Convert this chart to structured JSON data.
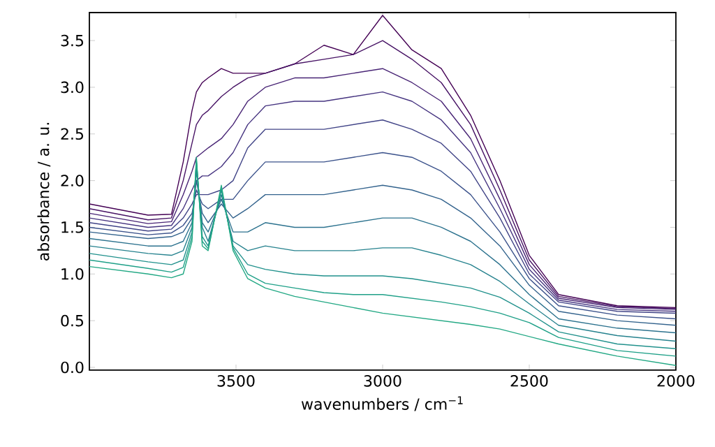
{
  "chart_data": {
    "type": "line",
    "xlabel": "wavenumbers / cm$^{−1}$",
    "ylabel": "absorbance / a. u.",
    "x": [
      4000,
      3800,
      3720,
      3680,
      3650,
      3635,
      3615,
      3595,
      3550,
      3510,
      3460,
      3400,
      3300,
      3200,
      3100,
      3000,
      2900,
      2800,
      2700,
      2600,
      2500,
      2400,
      2200,
      2000
    ],
    "xlim": [
      4000,
      2000
    ],
    "xticks": [
      3500,
      3000,
      2500,
      2000
    ],
    "ylim": [
      -0.03,
      3.8
    ],
    "yticks": [
      {
        "value": 0,
        "label": "0.0"
      },
      0.5,
      {
        "value": 1,
        "label": "1.0"
      },
      1.5,
      {
        "value": 2,
        "label": "2.0"
      },
      2.5,
      {
        "value": 3,
        "label": "3.0"
      },
      3.5
    ],
    "series": [
      {
        "color": "#440154",
        "values": [
          1.75,
          1.63,
          1.64,
          2.2,
          2.75,
          2.95,
          3.05,
          3.1,
          3.2,
          3.15,
          3.15,
          3.15,
          3.25,
          3.45,
          3.35,
          3.77,
          3.4,
          3.2,
          2.7,
          2.0,
          1.2,
          0.78,
          0.66,
          0.64
        ]
      },
      {
        "color": "#471365",
        "values": [
          1.7,
          1.58,
          1.6,
          2.0,
          2.4,
          2.6,
          2.7,
          2.75,
          2.9,
          3.0,
          3.1,
          3.15,
          3.25,
          3.3,
          3.35,
          3.5,
          3.3,
          3.05,
          2.6,
          1.9,
          1.15,
          0.76,
          0.65,
          0.63
        ]
      },
      {
        "color": "#482475",
        "values": [
          1.65,
          1.54,
          1.56,
          1.85,
          2.1,
          2.25,
          2.3,
          2.35,
          2.45,
          2.6,
          2.85,
          3.0,
          3.1,
          3.1,
          3.15,
          3.2,
          3.05,
          2.85,
          2.45,
          1.8,
          1.1,
          0.74,
          0.64,
          0.62
        ]
      },
      {
        "color": "#463480",
        "values": [
          1.6,
          1.5,
          1.52,
          1.7,
          1.9,
          2.0,
          2.05,
          2.05,
          2.15,
          2.3,
          2.6,
          2.8,
          2.85,
          2.85,
          2.9,
          2.95,
          2.85,
          2.65,
          2.3,
          1.7,
          1.05,
          0.72,
          0.62,
          0.6
        ]
      },
      {
        "color": "#414487",
        "values": [
          1.55,
          1.46,
          1.48,
          1.6,
          1.75,
          1.85,
          1.85,
          1.85,
          1.9,
          2.0,
          2.35,
          2.55,
          2.55,
          2.55,
          2.6,
          2.65,
          2.55,
          2.4,
          2.1,
          1.6,
          1.0,
          0.7,
          0.6,
          0.58
        ]
      },
      {
        "color": "#3b528b",
        "values": [
          1.5,
          1.42,
          1.44,
          1.52,
          1.65,
          1.9,
          1.75,
          1.7,
          1.8,
          1.8,
          2.0,
          2.2,
          2.2,
          2.2,
          2.25,
          2.3,
          2.25,
          2.1,
          1.85,
          1.45,
          0.95,
          0.66,
          0.56,
          0.52
        ]
      },
      {
        "color": "#33638d",
        "values": [
          1.45,
          1.38,
          1.4,
          1.45,
          1.6,
          2.0,
          1.65,
          1.55,
          1.75,
          1.6,
          1.7,
          1.85,
          1.85,
          1.85,
          1.9,
          1.95,
          1.9,
          1.8,
          1.6,
          1.3,
          0.88,
          0.6,
          0.5,
          0.45
        ]
      },
      {
        "color": "#2c728e",
        "values": [
          1.38,
          1.3,
          1.3,
          1.35,
          1.55,
          2.1,
          1.55,
          1.45,
          1.8,
          1.45,
          1.45,
          1.55,
          1.5,
          1.5,
          1.55,
          1.6,
          1.6,
          1.5,
          1.35,
          1.1,
          0.78,
          0.52,
          0.42,
          0.37
        ]
      },
      {
        "color": "#26828e",
        "values": [
          1.3,
          1.22,
          1.2,
          1.25,
          1.5,
          2.15,
          1.5,
          1.35,
          1.85,
          1.35,
          1.25,
          1.3,
          1.25,
          1.25,
          1.25,
          1.28,
          1.28,
          1.2,
          1.1,
          0.92,
          0.68,
          0.45,
          0.34,
          0.28
        ]
      },
      {
        "color": "#21918c",
        "values": [
          1.22,
          1.13,
          1.1,
          1.15,
          1.45,
          2.2,
          1.4,
          1.3,
          1.9,
          1.3,
          1.1,
          1.05,
          1.0,
          0.98,
          0.98,
          0.98,
          0.95,
          0.9,
          0.85,
          0.75,
          0.58,
          0.38,
          0.25,
          0.2
        ]
      },
      {
        "color": "#1fa088",
        "values": [
          1.15,
          1.06,
          1.02,
          1.07,
          1.4,
          2.22,
          1.35,
          1.27,
          1.92,
          1.28,
          1.0,
          0.9,
          0.85,
          0.8,
          0.78,
          0.78,
          0.74,
          0.7,
          0.65,
          0.58,
          0.48,
          0.32,
          0.18,
          0.12
        ]
      },
      {
        "color": "#22a884",
        "values": [
          1.08,
          1.0,
          0.96,
          1.0,
          1.35,
          2.25,
          1.3,
          1.25,
          1.95,
          1.25,
          0.95,
          0.85,
          0.76,
          0.7,
          0.64,
          0.58,
          0.54,
          0.5,
          0.46,
          0.41,
          0.33,
          0.25,
          0.12,
          0.02
        ]
      }
    ]
  }
}
